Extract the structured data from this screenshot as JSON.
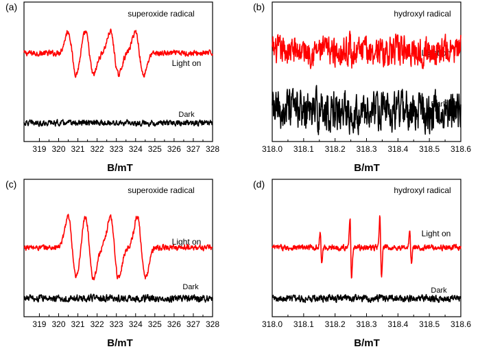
{
  "chart_data": [
    {
      "panel_label": "(a)",
      "type": "line",
      "title": "superoxide radical",
      "xlabel": "B/mT",
      "ylabel": "",
      "xlim": [
        318.2,
        328.0
      ],
      "x_ticks": [
        "319",
        "320",
        "321",
        "322",
        "323",
        "324",
        "325",
        "326",
        "327",
        "328"
      ],
      "y_ticks_visible": false,
      "grid": false,
      "series": [
        {
          "name": "Light on",
          "color": "#ff0000",
          "signal": "dmpo_ooh",
          "peaks": [
            320.7,
            321.6,
            322.9,
            324.2
          ],
          "peak_amplitude": 1.0,
          "baseline": 0.7,
          "noise": 0.02
        },
        {
          "name": "Dark",
          "color": "#000000",
          "signal": "flat",
          "baseline": 0.12,
          "noise": 0.02
        }
      ]
    },
    {
      "panel_label": "(b)",
      "type": "line",
      "title": "hydroxyl radical",
      "xlabel": "B/mT",
      "ylabel": "",
      "xlim": [
        318.0,
        318.6
      ],
      "x_ticks": [
        "318.0",
        "318.1",
        "318.2",
        "318.3",
        "318.4",
        "318.5",
        "318.6"
      ],
      "y_ticks_visible": false,
      "grid": false,
      "series": [
        {
          "name": "Light on",
          "color": "#ff0000",
          "signal": "dmpo_oh",
          "peaks": [
            318.25,
            318.35
          ],
          "peak_amplitude": 0.55,
          "baseline": 0.72,
          "noise": 0.1
        },
        {
          "name": "Dark",
          "color": "#000000",
          "signal": "flat",
          "baseline": 0.22,
          "noise": 0.14
        }
      ]
    },
    {
      "panel_label": "(c)",
      "type": "line",
      "title": "superoxide radical",
      "xlabel": "B/mT",
      "ylabel": "",
      "xlim": [
        318.2,
        328.0
      ],
      "x_ticks": [
        "319",
        "320",
        "321",
        "322",
        "323",
        "324",
        "325",
        "326",
        "327",
        "328"
      ],
      "y_ticks_visible": false,
      "grid": false,
      "series": [
        {
          "name": "Light on",
          "color": "#ff0000",
          "signal": "dmpo_ooh",
          "peaks": [
            320.7,
            321.6,
            322.9,
            324.3
          ],
          "peak_amplitude": 1.45,
          "baseline": 0.55,
          "noise": 0.02
        },
        {
          "name": "Dark",
          "color": "#000000",
          "signal": "flat",
          "baseline": 0.12,
          "noise": 0.025
        }
      ]
    },
    {
      "panel_label": "(d)",
      "type": "line",
      "title": "hydroxyl radical",
      "xlabel": "B/mT",
      "ylabel": "",
      "xlim": [
        318.0,
        318.6
      ],
      "x_ticks": [
        "318.0",
        "318.1",
        "318.2",
        "318.3",
        "318.4",
        "318.5",
        "318.6"
      ],
      "y_ticks_visible": false,
      "grid": false,
      "series": [
        {
          "name": "Light on",
          "color": "#ff0000",
          "signal": "dmpo_oh",
          "peaks": [
            318.155,
            318.25,
            318.345,
            318.44
          ],
          "peak_amplitudes": [
            0.5,
            1.0,
            1.0,
            0.5
          ],
          "peak_amplitude": 1.45,
          "baseline": 0.55,
          "noise": 0.02
        },
        {
          "name": "Dark",
          "color": "#000000",
          "signal": "flat",
          "baseline": 0.12,
          "noise": 0.025
        }
      ]
    }
  ]
}
